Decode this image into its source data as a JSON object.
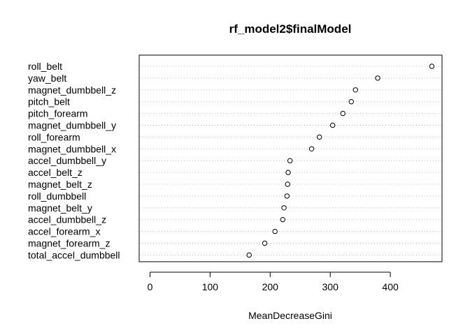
{
  "chart_data": {
    "type": "dotplot",
    "title": "rf_model2$finalModel",
    "xlabel": "MeanDecreaseGini",
    "ylabel": "",
    "xlim": [
      -18,
      486
    ],
    "xticks": [
      0,
      100,
      200,
      300,
      400
    ],
    "grid": "dotted horizontal lines per category",
    "categories": [
      "roll_belt",
      "yaw_belt",
      "magnet_dumbbell_z",
      "pitch_belt",
      "pitch_forearm",
      "magnet_dumbbell_y",
      "roll_forearm",
      "magnet_dumbbell_x",
      "accel_dumbbell_y",
      "accel_belt_z",
      "magnet_belt_z",
      "roll_dumbbell",
      "magnet_belt_y",
      "accel_dumbbell_z",
      "accel_forearm_x",
      "magnet_forearm_z",
      "total_accel_dumbbell"
    ],
    "values": [
      469,
      379,
      342,
      335,
      321,
      304,
      282,
      269,
      233,
      230,
      229,
      228,
      223,
      221,
      208,
      191,
      165
    ]
  }
}
